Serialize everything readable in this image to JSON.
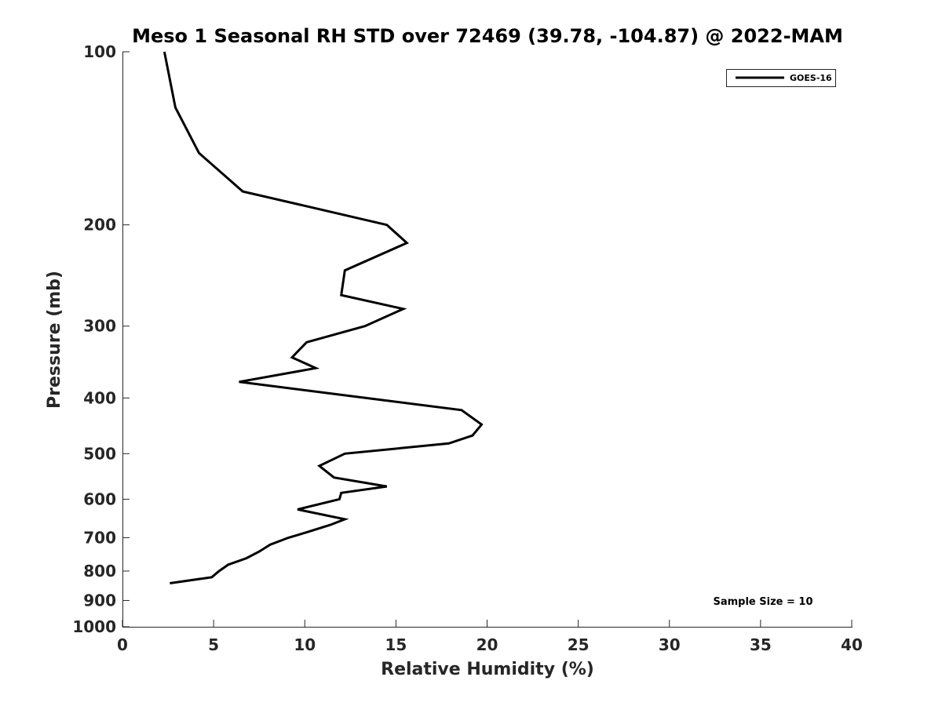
{
  "chart_data": {
    "type": "line",
    "title": "Meso 1 Seasonal RH STD over 72469 (39.78, -104.87) @ 2022-MAM",
    "xlabel": "Relative Humidity (%)",
    "ylabel": "Pressure (mb)",
    "xlim": [
      0,
      40
    ],
    "ylim": [
      100,
      1000
    ],
    "y_scale": "log",
    "y_reversed": true,
    "grid": false,
    "legend_position": "top-right",
    "xticks": [
      "0",
      "5",
      "10",
      "15",
      "20",
      "25",
      "30",
      "35",
      "40"
    ],
    "yticks": [
      "100",
      "200",
      "300",
      "400",
      "500",
      "600",
      "700",
      "800",
      "900",
      "1000"
    ],
    "annotation": "Sample Size = 10",
    "series": [
      {
        "name": "GOES-16",
        "color": "#000000",
        "x": [
          2.3,
          2.9,
          4.2,
          6.6,
          9.9,
          14.5,
          15.6,
          12.2,
          12.0,
          15.4,
          13.3,
          10.1,
          9.3,
          10.6,
          6.4,
          18.6,
          19.7,
          19.2,
          17.9,
          12.2,
          10.8,
          11.6,
          14.5,
          12.0,
          11.9,
          9.6,
          12.2,
          11.4,
          10.1,
          9.1,
          8.1,
          7.5,
          6.8,
          5.8,
          5.3,
          4.9,
          2.6
        ],
        "y": [
          100,
          125,
          150,
          175,
          185,
          200,
          215,
          240,
          265,
          280,
          300,
          320,
          340,
          355,
          375,
          420,
          445,
          465,
          480,
          500,
          525,
          550,
          570,
          585,
          600,
          625,
          650,
          665,
          685,
          700,
          720,
          740,
          760,
          780,
          800,
          820,
          840
        ]
      }
    ]
  }
}
